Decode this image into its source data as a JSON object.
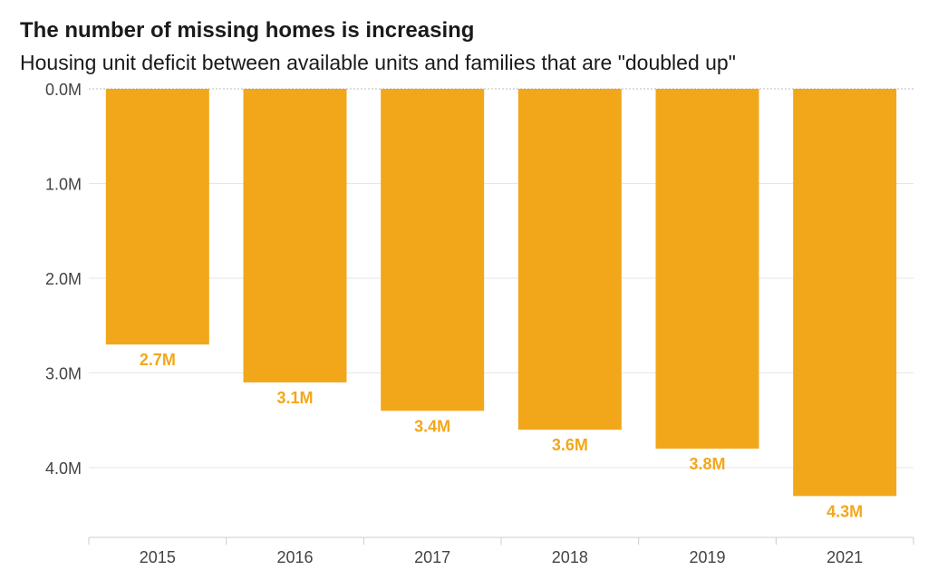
{
  "chart_data": {
    "type": "bar",
    "title": "The number of missing homes is increasing",
    "subtitle": "Housing unit deficit between available units and families that are \"doubled up\"",
    "categories": [
      "2015",
      "2016",
      "2017",
      "2018",
      "2019",
      "2021"
    ],
    "values": [
      2.7,
      3.1,
      3.4,
      3.6,
      3.8,
      4.3
    ],
    "data_labels": [
      "2.7M",
      "3.1M",
      "3.4M",
      "3.6M",
      "3.8M",
      "4.3M"
    ],
    "y_ticks": [
      0,
      1,
      2,
      3,
      4
    ],
    "y_tick_labels": [
      "0.0M",
      "1.0M",
      "2.0M",
      "3.0M",
      "4.0M"
    ],
    "ylim": [
      0,
      4.7
    ],
    "y_axis_inverted": true,
    "grid": true,
    "colors": {
      "bar": "#F2A71B",
      "label": "#F2A71B",
      "grid": "#e6e6e6"
    }
  }
}
